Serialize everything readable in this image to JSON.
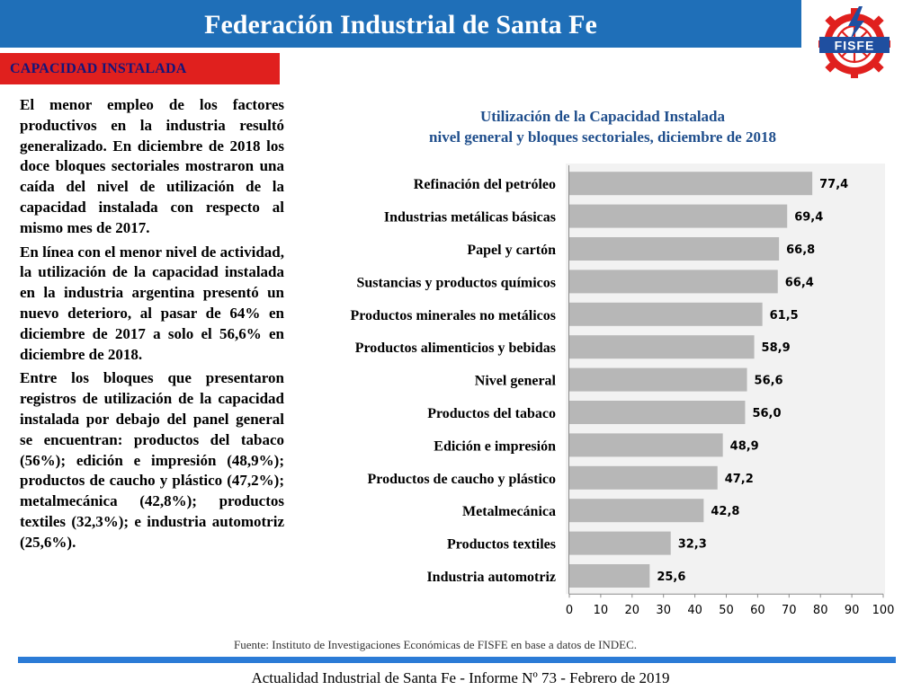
{
  "header": {
    "title": "Federación Industrial de Santa Fe"
  },
  "logo": {
    "text": "FISFE",
    "icon": "gear-lightning-logo"
  },
  "section": {
    "label": "CAPACIDAD INSTALADA"
  },
  "body": {
    "paragraphs": [
      "El menor empleo de los factores productivos en la industria resultó generalizado. En diciembre de 2018 los doce bloques sectoriales mostraron una caída del nivel de utilización de la capacidad instalada con respecto al mismo mes de 2017.",
      "En línea con el menor nivel de actividad, la utilización de la capacidad instalada en la industria argentina presentó un nuevo deterioro, al pasar de 64% en diciembre de 2017 a solo el 56,6% en diciembre de 2018.",
      "Entre los bloques que presentaron registros de utilización de la capacidad instalada por debajo del panel general se encuentran: productos del tabaco (56%); edición e impresión (48,9%); productos de caucho y plástico (47,2%); metalmecánica (42,8%); productos textiles (32,3%); e industria automotriz (25,6%)."
    ]
  },
  "chart_data": {
    "type": "bar",
    "orientation": "horizontal",
    "title": "Utilización de la Capacidad Instalada",
    "subtitle": "nivel general y bloques sectoriales, diciembre de 2018",
    "categories": [
      "Refinación del petróleo",
      "Industrias metálicas básicas",
      "Papel y cartón",
      "Sustancias y productos químicos",
      "Productos minerales no metálicos",
      "Productos alimenticios y bebidas",
      "Nivel general",
      "Productos del tabaco",
      "Edición e impresión",
      "Productos de caucho y plástico",
      "Metalmecánica",
      "Productos textiles",
      "Industria automotriz"
    ],
    "values": [
      77.4,
      69.4,
      66.8,
      66.4,
      61.5,
      58.9,
      56.6,
      56.0,
      48.9,
      47.2,
      42.8,
      32.3,
      25.6
    ],
    "value_labels": [
      "77,4",
      "69,4",
      "66,8",
      "66,4",
      "61,5",
      "58,9",
      "56,6",
      "56,0",
      "48,9",
      "47,2",
      "42,8",
      "32,3",
      "25,6"
    ],
    "xlim": [
      0,
      100
    ],
    "xticks": [
      "0",
      "10",
      "20",
      "30",
      "40",
      "50",
      "60",
      "70",
      "80",
      "90",
      "100"
    ],
    "bar_color": "#b7b7b7",
    "grid": false
  },
  "source": "Fuente: Instituto de Investigaciones Económicas de FISFE en base a datos de INDEC.",
  "footer": "Actualidad Industrial de Santa Fe - Informe Nº 73 - Febrero de 2019",
  "colors": {
    "header": "#1f6fb8",
    "section_tag": "#e0201e",
    "title_blue": "#1f4e8c",
    "footer_bar": "#2b7bd6"
  }
}
